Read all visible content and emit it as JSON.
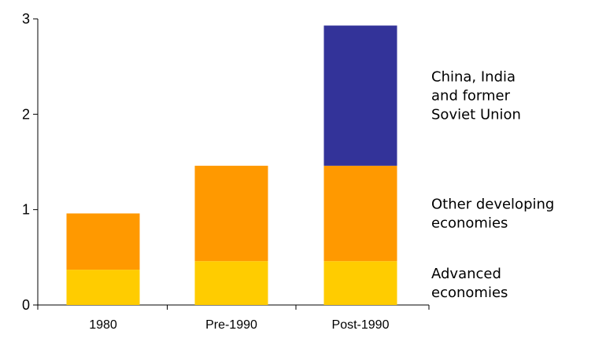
{
  "chart_data": {
    "type": "bar",
    "stacked": true,
    "categories": [
      "1980",
      "Pre-1990",
      "Post-1990"
    ],
    "series": [
      {
        "name": "Advanced economies",
        "name_lines": [
          "Advanced",
          "economies"
        ],
        "color": "#FFCC00",
        "values": [
          0.37,
          0.46,
          0.46
        ]
      },
      {
        "name": "Other developing economies",
        "name_lines": [
          "Other developing",
          "economies"
        ],
        "color": "#FF9900",
        "values": [
          0.59,
          1.0,
          1.0
        ]
      },
      {
        "name": "China, India and former Soviet Union",
        "name_lines": [
          "China, India",
          "and former",
          "Soviet Union"
        ],
        "color": "#333399",
        "values": [
          0,
          0,
          1.47
        ]
      }
    ],
    "title": "",
    "xlabel": "",
    "ylabel": "",
    "ylim": [
      0,
      3
    ],
    "yticks": [
      "0",
      "1",
      "2",
      "3"
    ],
    "grid": false,
    "legend": "right, beside stacked segments"
  }
}
